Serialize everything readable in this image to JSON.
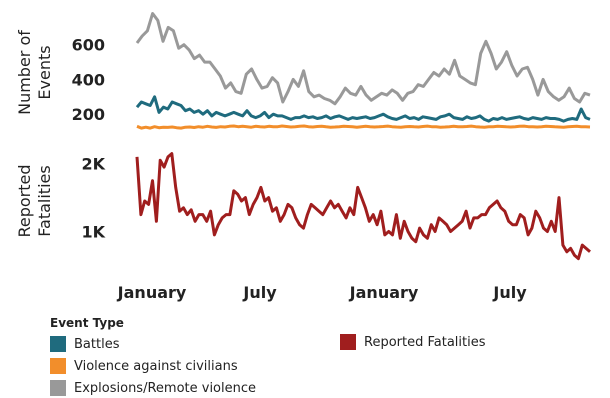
{
  "chart_data": {
    "type": "line",
    "x_ticks": [
      "January",
      "July",
      "January",
      "July"
    ],
    "panels": [
      {
        "ylabel": [
          "Number of",
          "Events"
        ],
        "yticks": [
          200,
          400,
          600
        ],
        "ylim": [
          80,
          800
        ],
        "series": [
          {
            "name": "Battles",
            "color": "#1f6b7e",
            "values": [
              240,
              270,
              260,
              250,
              300,
              210,
              240,
              230,
              270,
              260,
              250,
              220,
              230,
              210,
              220,
              200,
              220,
              190,
              210,
              200,
              190,
              200,
              210,
              200,
              190,
              220,
              190,
              180,
              190,
              210,
              180,
              200,
              190,
              190,
              180,
              170,
              180,
              180,
              190,
              180,
              185,
              175,
              180,
              190,
              175,
              185,
              190,
              180,
              170,
              180,
              175,
              180,
              185,
              175,
              180,
              190,
              200,
              185,
              175,
              170,
              180,
              190,
              175,
              180,
              170,
              185,
              180,
              175,
              170,
              185,
              190,
              200,
              180,
              175,
              170,
              185,
              175,
              180,
              190,
              170,
              160,
              175,
              170,
              180,
              170,
              175,
              180,
              185,
              175,
              170,
              180,
              175,
              170,
              180,
              175,
              175,
              170,
              160,
              170,
              175,
              170,
              230,
              180,
              170
            ]
          },
          {
            "name": "Violence against civilians",
            "color": "#f28e2b",
            "values": [
              130,
              120,
              125,
              120,
              128,
              122,
              125,
              124,
              126,
              122,
              120,
              125,
              126,
              123,
              128,
              125,
              130,
              126,
              124,
              128,
              126,
              130,
              132,
              128,
              130,
              127,
              125,
              130,
              128,
              126,
              130,
              127,
              128,
              132,
              129,
              126,
              128,
              130,
              132,
              128,
              126,
              129,
              130,
              127,
              125,
              126,
              128,
              130,
              129,
              127,
              125,
              128,
              130,
              128,
              126,
              127,
              129,
              131,
              128,
              126,
              125,
              128,
              129,
              127,
              126,
              129,
              131,
              128,
              127,
              125,
              126,
              128,
              130,
              128,
              127,
              129,
              131,
              128,
              126,
              125,
              127,
              128,
              130,
              129,
              127,
              126,
              128,
              130,
              131,
              128,
              127,
              126,
              128,
              130,
              129,
              127,
              126,
              125,
              127,
              129,
              130,
              128,
              127,
              126
            ]
          },
          {
            "name": "Explosions/Remote violence",
            "color": "#999999",
            "values": [
              610,
              650,
              680,
              780,
              740,
              620,
              700,
              680,
              580,
              600,
              570,
              520,
              540,
              500,
              500,
              460,
              420,
              350,
              380,
              330,
              320,
              430,
              460,
              400,
              350,
              360,
              410,
              380,
              270,
              330,
              400,
              360,
              450,
              330,
              300,
              310,
              290,
              280,
              260,
              300,
              350,
              320,
              310,
              360,
              310,
              280,
              300,
              320,
              310,
              340,
              320,
              280,
              320,
              330,
              370,
              360,
              400,
              440,
              420,
              460,
              430,
              510,
              420,
              400,
              380,
              370,
              550,
              620,
              550,
              460,
              500,
              560,
              480,
              420,
              460,
              470,
              400,
              310,
              400,
              330,
              300,
              280,
              300,
              350,
              290,
              270,
              320,
              310
            ]
          }
        ]
      },
      {
        "ylabel": [
          "Reported",
          "Fatalities"
        ],
        "yticks_labels": [
          "1K",
          "2K"
        ],
        "yticks": [
          1000,
          2000
        ],
        "ylim": [
          550,
          2350
        ],
        "series": [
          {
            "name": "Reported Fatalities",
            "color": "#a01e1e",
            "values": [
              2100,
              1250,
              1450,
              1400,
              1750,
              1150,
              2050,
              1950,
              2100,
              2150,
              1650,
              1300,
              1350,
              1250,
              1320,
              1150,
              1250,
              1250,
              1150,
              1300,
              950,
              1100,
              1200,
              1250,
              1250,
              1600,
              1550,
              1450,
              1500,
              1250,
              1400,
              1500,
              1650,
              1450,
              1500,
              1300,
              1350,
              1150,
              1250,
              1400,
              1350,
              1200,
              1100,
              1050,
              1250,
              1400,
              1350,
              1300,
              1250,
              1350,
              1450,
              1350,
              1400,
              1300,
              1200,
              1350,
              1250,
              1650,
              1500,
              1350,
              1150,
              1250,
              1100,
              1300,
              950,
              1000,
              950,
              1250,
              900,
              1150,
              1000,
              900,
              850,
              1050,
              950,
              900,
              1100,
              1000,
              1200,
              1150,
              1100,
              1000,
              1050,
              1100,
              1150,
              1300,
              1050,
              1200,
              1200,
              1250,
              1250,
              1350,
              1400,
              1450,
              1350,
              1300,
              1150,
              1100,
              1100,
              1250,
              1200,
              950,
              1050,
              1300,
              1200,
              1050,
              1000,
              1150,
              1000,
              1500,
              800,
              700,
              750,
              650,
              600,
              800,
              750,
              700
            ]
          }
        ]
      }
    ]
  },
  "legend": {
    "title": "Event Type",
    "items": [
      {
        "label": "Battles",
        "color": "#1f6b7e"
      },
      {
        "label": "Violence against civilians",
        "color": "#f28e2b"
      },
      {
        "label": "Explosions/Remote violence",
        "color": "#999999"
      },
      {
        "label": "Reported Fatalities",
        "color": "#a01e1e"
      }
    ]
  }
}
